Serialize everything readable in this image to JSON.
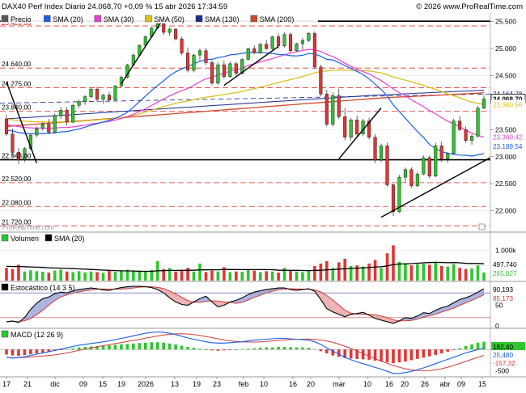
{
  "header": {
    "title": "DAX40 Perf Index Diario 24.068,70 +0,09 % 15 abr 2026 17:34:59",
    "brand": "© 2026 www.ProRealTime.com",
    "watermark": "ProRealTime.com"
  },
  "colors": {
    "bull": "#2ec52e",
    "bear": "#e23434",
    "sma20": "#1a5fe6",
    "sma30": "#e83fd2",
    "sma50": "#d8c21c",
    "sma130": "#1b2a8f",
    "sma200": "#d1452c",
    "trend": "#000000",
    "hline_red": "#e23434"
  },
  "price_panel": {
    "legend": [
      "Precio",
      "SMA (20)",
      "SMA (30)",
      "SMA (50)",
      "SMA (130)",
      "SMA (200)"
    ],
    "left_labels": [
      "25.507,79",
      "24.640,00",
      "24.275,00",
      "23.840,00",
      "22.943,00",
      "22.520,00",
      "22.080,00",
      "21.720,00"
    ],
    "right_ticks": [
      "25.500",
      "25.000",
      "24.500",
      "24.000",
      "23.500",
      "23.000",
      "22.500",
      "22.000"
    ],
    "value_tags": {
      "sma130": "24.164,78",
      "price": "24.068,70",
      "sma50": "23.960,56",
      "sma30": "23.360,42",
      "sma20": "23.189,54"
    }
  },
  "volume_panel": {
    "legend": [
      "Volumen",
      "SMA (20)"
    ],
    "ticks": [
      "1.000k",
      "500k"
    ],
    "value_tags": {
      "sma": "497.740",
      "volume": "265.027"
    }
  },
  "stoch_panel": {
    "legend": "Estocástico (14 3 5)",
    "ticks": [
      "50",
      "0"
    ],
    "value_tags": {
      "k": "90,193",
      "d": "85,173"
    }
  },
  "macd_panel": {
    "legend": "MACD (12 26 9)",
    "ticks": [
      "0",
      "-500"
    ],
    "value_tags": {
      "hist": "182,40",
      "macd": "25,480",
      "signal": "-157,32"
    }
  },
  "x_axis": {
    "labels": [
      "17",
      "21",
      "dic",
      "09",
      "15",
      "19",
      "2026",
      "13",
      "19",
      "23",
      "feb",
      "10",
      "16",
      "20",
      "mar",
      "10",
      "16",
      "20",
      "26",
      "abr",
      "09",
      "15"
    ]
  },
  "chart_data": {
    "type": "candlestick",
    "dates_note": "",
    "candles": [
      [
        23700,
        23780,
        23380,
        23420
      ],
      [
        23420,
        23520,
        23020,
        23080
      ],
      [
        23080,
        23160,
        22860,
        22943
      ],
      [
        22950,
        23180,
        22900,
        23150
      ],
      [
        23150,
        23420,
        23120,
        23400
      ],
      [
        23400,
        23560,
        23360,
        23520
      ],
      [
        23520,
        23640,
        23480,
        23600
      ],
      [
        23600,
        23700,
        23420,
        23450
      ],
      [
        23450,
        23800,
        23430,
        23760
      ],
      [
        23760,
        23920,
        23700,
        23860
      ],
      [
        23860,
        23920,
        23580,
        23640
      ],
      [
        23640,
        23980,
        23620,
        23950
      ],
      [
        23950,
        24060,
        23900,
        24020
      ],
      [
        24020,
        24140,
        23960,
        24110
      ],
      [
        24110,
        24280,
        24080,
        24250
      ],
      [
        24250,
        24300,
        24020,
        24060
      ],
      [
        24060,
        24160,
        23980,
        24140
      ],
      [
        24140,
        24200,
        24020,
        24050
      ],
      [
        24050,
        24330,
        24040,
        24310
      ],
      [
        24310,
        24500,
        24280,
        24470
      ],
      [
        24470,
        24720,
        24450,
        24700
      ],
      [
        24700,
        24900,
        24680,
        24880
      ],
      [
        24880,
        25080,
        24860,
        25060
      ],
      [
        25060,
        25240,
        25030,
        25220
      ],
      [
        25220,
        25400,
        25200,
        25380
      ],
      [
        25380,
        25500,
        25360,
        25460
      ],
      [
        25460,
        25510,
        25250,
        25300
      ],
      [
        25300,
        25390,
        25240,
        25360
      ],
      [
        25360,
        25380,
        25150,
        25180
      ],
      [
        25180,
        25220,
        24880,
        24920
      ],
      [
        24920,
        25020,
        24560,
        24600
      ],
      [
        24600,
        24900,
        24560,
        24880
      ],
      [
        24880,
        25000,
        24780,
        24960
      ],
      [
        24960,
        25010,
        24700,
        24740
      ],
      [
        24740,
        24780,
        24320,
        24360
      ],
      [
        24360,
        24750,
        24330,
        24700
      ],
      [
        24700,
        24780,
        24440,
        24480
      ],
      [
        24480,
        24760,
        24460,
        24720
      ],
      [
        24720,
        24760,
        24500,
        24540
      ],
      [
        24540,
        24820,
        24520,
        24800
      ],
      [
        24800,
        25020,
        24780,
        25000
      ],
      [
        25000,
        25060,
        24900,
        24920
      ],
      [
        24920,
        25100,
        24900,
        25080
      ],
      [
        25080,
        25160,
        24980,
        25000
      ],
      [
        25000,
        25240,
        24980,
        25220
      ],
      [
        25220,
        25280,
        25000,
        25050
      ],
      [
        25050,
        25300,
        25020,
        25260
      ],
      [
        25260,
        25300,
        24920,
        24960
      ],
      [
        24960,
        25110,
        24940,
        25090
      ],
      [
        25090,
        25200,
        24980,
        25150
      ],
      [
        25150,
        25300,
        25120,
        25280
      ],
      [
        25280,
        25320,
        24620,
        24660
      ],
      [
        24660,
        24700,
        24120,
        24160
      ],
      [
        24160,
        24240,
        23560,
        23600
      ],
      [
        23600,
        24190,
        23560,
        24130
      ],
      [
        24130,
        24260,
        23700,
        23740
      ],
      [
        23740,
        23900,
        23300,
        23360
      ],
      [
        23360,
        23720,
        23300,
        23680
      ],
      [
        23680,
        23760,
        23380,
        23420
      ],
      [
        23420,
        23700,
        23380,
        23660
      ],
      [
        23660,
        23720,
        23320,
        23360
      ],
      [
        23360,
        23420,
        22880,
        22940
      ],
      [
        22940,
        23240,
        22900,
        23200
      ],
      [
        23200,
        23260,
        22440,
        22480
      ],
      [
        22480,
        22500,
        21900,
        21980
      ],
      [
        21980,
        22660,
        21960,
        22620
      ],
      [
        22620,
        22800,
        22520,
        22760
      ],
      [
        22760,
        22800,
        22420,
        22460
      ],
      [
        22460,
        22720,
        22440,
        22680
      ],
      [
        22680,
        23020,
        22660,
        22980
      ],
      [
        22980,
        23020,
        22600,
        22640
      ],
      [
        22640,
        23260,
        22620,
        23200
      ],
      [
        23200,
        23280,
        22900,
        22960
      ],
      [
        22960,
        23080,
        22880,
        23060
      ],
      [
        23060,
        23700,
        23040,
        23660
      ],
      [
        23660,
        23760,
        23480,
        23500
      ],
      [
        23500,
        23560,
        23260,
        23300
      ],
      [
        23300,
        23420,
        23220,
        23380
      ],
      [
        23380,
        23940,
        23360,
        23900
      ],
      [
        23900,
        24140,
        23880,
        24068
      ]
    ],
    "volume": [
      420,
      380,
      520,
      300,
      340,
      310,
      290,
      260,
      330,
      360,
      300,
      280,
      310,
      270,
      300,
      280,
      260,
      320,
      290,
      340,
      360,
      310,
      330,
      290,
      350,
      640,
      380,
      420,
      300,
      360,
      420,
      300,
      560,
      280,
      330,
      300,
      440,
      280,
      300,
      290,
      360,
      330,
      280,
      310,
      300,
      260,
      420,
      330,
      300,
      280,
      350,
      480,
      560,
      640,
      420,
      600,
      720,
      480,
      500,
      460,
      560,
      680,
      420,
      900,
      1160,
      620,
      560,
      500,
      540,
      560,
      520,
      600,
      480,
      460,
      540,
      420,
      380,
      400,
      500,
      265
    ],
    "volume_sma_start": 470,
    "stoch_k": [
      10,
      12,
      8,
      20,
      40,
      55,
      66,
      70,
      78,
      82,
      80,
      85,
      88,
      90,
      92,
      90,
      87,
      86,
      90,
      93,
      95,
      96,
      96,
      95,
      93,
      88,
      80,
      68,
      58,
      52,
      50,
      58,
      66,
      72,
      58,
      46,
      50,
      58,
      62,
      68,
      76,
      82,
      85,
      88,
      90,
      92,
      92,
      88,
      86,
      88,
      90,
      84,
      64,
      42,
      34,
      28,
      22,
      28,
      30,
      33,
      26,
      18,
      14,
      10,
      6,
      12,
      20,
      18,
      24,
      32,
      30,
      38,
      44,
      48,
      56,
      64,
      68,
      74,
      82,
      90
    ],
    "macd_hist": [
      -120,
      -140,
      -150,
      -130,
      -110,
      -90,
      -70,
      -50,
      -30,
      -10,
      10,
      30,
      50,
      60,
      70,
      80,
      90,
      100,
      110,
      120,
      130,
      140,
      150,
      160,
      170,
      170,
      160,
      140,
      120,
      90,
      60,
      40,
      20,
      0,
      -20,
      -30,
      -20,
      -10,
      0,
      10,
      20,
      30,
      40,
      50,
      50,
      60,
      60,
      55,
      50,
      50,
      40,
      10,
      -40,
      -90,
      -140,
      -170,
      -200,
      -210,
      -220,
      -230,
      -240,
      -260,
      -280,
      -300,
      -320,
      -300,
      -280,
      -250,
      -220,
      -190,
      -160,
      -130,
      -90,
      -50,
      -10,
      30,
      80,
      120,
      160,
      182
    ],
    "macd_line": [
      -180,
      -200,
      -190,
      -170,
      -140,
      -110,
      -80,
      -50,
      -20,
      10,
      40,
      70,
      100,
      120,
      140,
      160,
      180,
      200,
      230,
      260,
      290,
      320,
      350,
      380,
      400,
      410,
      400,
      380,
      350,
      310,
      270,
      240,
      210,
      180,
      160,
      150,
      150,
      160,
      170,
      180,
      200,
      220,
      230,
      240,
      250,
      260,
      260,
      250,
      240,
      230,
      220,
      180,
      120,
      40,
      -40,
      -110,
      -180,
      -240,
      -290,
      -330,
      -370,
      -420,
      -460,
      -510,
      -560,
      -560,
      -540,
      -510,
      -470,
      -430,
      -380,
      -330,
      -280,
      -230,
      -180,
      -130,
      -80,
      -40,
      0,
      25
    ]
  }
}
